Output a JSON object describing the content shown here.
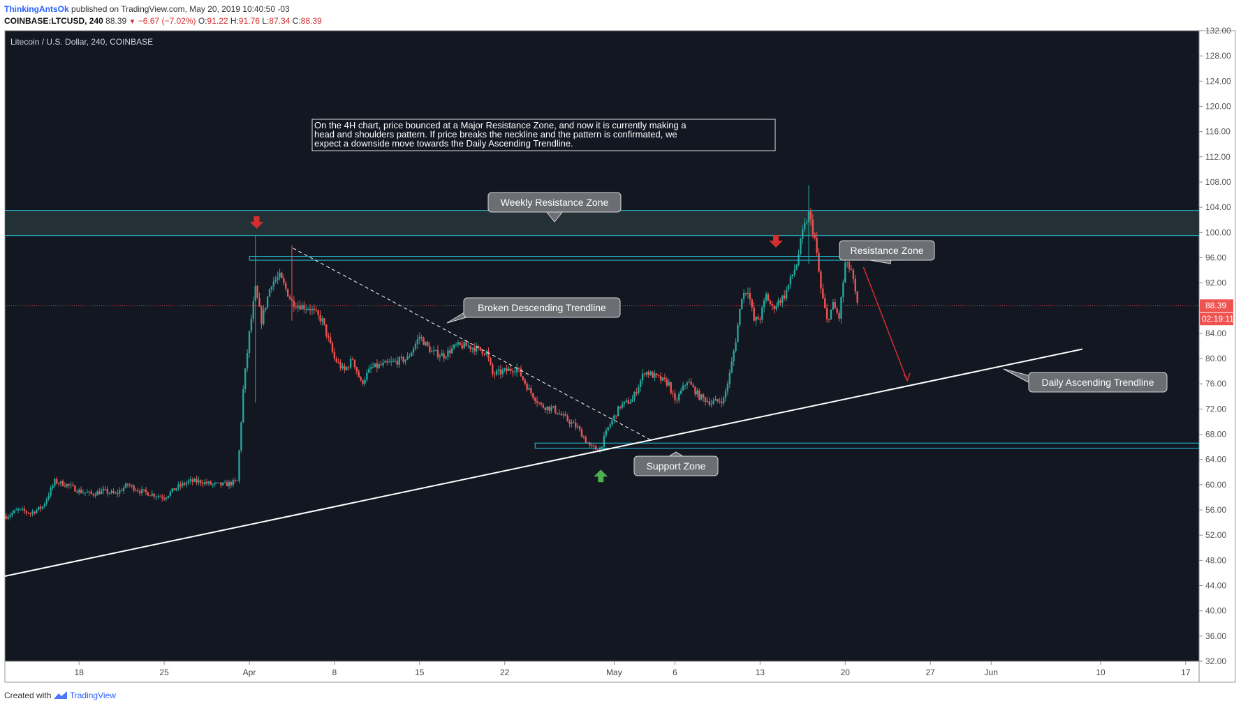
{
  "header": {
    "author": "ThinkingAntsOk",
    "published": "published on TradingView.com, May 20, 2019 10:40:50 -03",
    "symbol": "COINBASE:LTCUSD, 240",
    "last": "88.39",
    "change": "−6.67 (−7.02%)",
    "o_label": "O:",
    "o_value": "91.22",
    "h_label": "H:",
    "h_value": "91.76",
    "l_label": "L:",
    "l_value": "87.34",
    "c_label": "C:",
    "c_value": "88.39"
  },
  "footer": {
    "created_with": "Created with",
    "brand": "TradingView"
  },
  "colors": {
    "chart_bg": "#131722",
    "up": "#26a69a",
    "down": "#ef5350",
    "zone": "#26c6da",
    "annotation_bg": "#6b6e73",
    "arrow_red": "#d32f2f",
    "arrow_green": "#4caf50"
  },
  "chart_data": {
    "type": "candlestick",
    "title": "Litecoin / U.S. Dollar, 240, COINBASE",
    "current_price_label": "88.39",
    "countdown_label": "02:19:11",
    "y_axis": {
      "min": 32,
      "max": 132,
      "step": 4
    },
    "x_ticks": [
      {
        "label": "18",
        "day": 4
      },
      {
        "label": "25",
        "day": 11
      },
      {
        "label": "Apr",
        "day": 18
      },
      {
        "label": "8",
        "day": 25
      },
      {
        "label": "15",
        "day": 32
      },
      {
        "label": "22",
        "day": 39
      },
      {
        "label": "May",
        "day": 48
      },
      {
        "label": "6",
        "day": 53
      },
      {
        "label": "13",
        "day": 60
      },
      {
        "label": "20",
        "day": 67
      },
      {
        "label": "27",
        "day": 74
      },
      {
        "label": "Jun",
        "day": 79
      },
      {
        "label": "10",
        "day": 88
      },
      {
        "label": "17",
        "day": 95
      }
    ],
    "x_range": {
      "start_day": -2.1,
      "end_day": 96.1,
      "start_date": "2019-03-12"
    },
    "price_anchors": [
      [
        -2.0,
        55
      ],
      [
        -1.0,
        56
      ],
      [
        0.0,
        55.5
      ],
      [
        1.0,
        56.5
      ],
      [
        2.0,
        60.5
      ],
      [
        3.0,
        60
      ],
      [
        4.0,
        59
      ],
      [
        5.0,
        58.5
      ],
      [
        6.0,
        59
      ],
      [
        7.0,
        58.5
      ],
      [
        8.0,
        60
      ],
      [
        9.0,
        59
      ],
      [
        10.0,
        58.5
      ],
      [
        11.0,
        58
      ],
      [
        12.0,
        59.5
      ],
      [
        13.0,
        60.5
      ],
      [
        14.0,
        60.5
      ],
      [
        15.0,
        60
      ],
      [
        16.0,
        60
      ],
      [
        17.0,
        60.5
      ],
      [
        17.5,
        75
      ],
      [
        18.0,
        84
      ],
      [
        18.5,
        91
      ],
      [
        19.0,
        86
      ],
      [
        19.8,
        92
      ],
      [
        20.5,
        93
      ],
      [
        21.5,
        89
      ],
      [
        22.0,
        88.5
      ],
      [
        23.0,
        88
      ],
      [
        24.0,
        86
      ],
      [
        25.0,
        80
      ],
      [
        25.8,
        78
      ],
      [
        26.5,
        80
      ],
      [
        27.2,
        76
      ],
      [
        28.0,
        78.5
      ],
      [
        29.0,
        79
      ],
      [
        30.0,
        79.5
      ],
      [
        31.0,
        80
      ],
      [
        32.0,
        83.5
      ],
      [
        33.0,
        81
      ],
      [
        34.0,
        80.5
      ],
      [
        35.0,
        82
      ],
      [
        36.0,
        82
      ],
      [
        37.5,
        81
      ],
      [
        38.0,
        77.5
      ],
      [
        39.0,
        78
      ],
      [
        40.0,
        78.5
      ],
      [
        41.0,
        75
      ],
      [
        42.0,
        72.5
      ],
      [
        43.0,
        72
      ],
      [
        44.0,
        70.5
      ],
      [
        45.0,
        69
      ],
      [
        46.0,
        66
      ],
      [
        46.8,
        65.5
      ],
      [
        47.5,
        69
      ],
      [
        48.5,
        72.5
      ],
      [
        49.5,
        73.5
      ],
      [
        50.5,
        78
      ],
      [
        51.5,
        77
      ],
      [
        52.5,
        76
      ],
      [
        53.0,
        73
      ],
      [
        54.0,
        76.5
      ],
      [
        55.0,
        74
      ],
      [
        56.0,
        73
      ],
      [
        57.0,
        73.5
      ],
      [
        57.5,
        77.5
      ],
      [
        58.0,
        83
      ],
      [
        58.5,
        90
      ],
      [
        59.0,
        91
      ],
      [
        59.5,
        86
      ],
      [
        60.0,
        86.5
      ],
      [
        60.5,
        90
      ],
      [
        61.0,
        88
      ],
      [
        62.0,
        90
      ],
      [
        63.0,
        95
      ],
      [
        63.5,
        100
      ],
      [
        64.0,
        103
      ],
      [
        64.5,
        99
      ],
      [
        65.0,
        91
      ],
      [
        65.5,
        86
      ],
      [
        66.0,
        88.5
      ],
      [
        66.5,
        86.5
      ],
      [
        67.0,
        95
      ],
      [
        67.5,
        94
      ],
      [
        68.0,
        88.39
      ]
    ],
    "zones": [
      {
        "name": "weekly_resistance",
        "low": 99.5,
        "high": 103.5,
        "filled": true
      },
      {
        "name": "resistance",
        "low": 95.6,
        "high": 96.2,
        "day_from": 18,
        "day_to": 72.2
      },
      {
        "name": "support",
        "low": 65.8,
        "high": 66.6,
        "day_from": 41.5,
        "day_to": 96.1
      }
    ],
    "trendlines": [
      {
        "name": "daily_ascending",
        "from": [
          -2.1,
          45.5
        ],
        "to": [
          86.5,
          81.5
        ],
        "style": "solid"
      },
      {
        "name": "broken_descending",
        "from": [
          21.6,
          97.5
        ],
        "to": [
          51.1,
          67
        ],
        "style": "dashed"
      }
    ],
    "annotations": [
      {
        "text": "Weekly Resistance Zone"
      },
      {
        "text": "Resistance Zone"
      },
      {
        "text": "Broken Descending Trendline"
      },
      {
        "text": "Daily Ascending Trendline"
      },
      {
        "text": "Support Zone"
      }
    ],
    "note_lines": [
      "On the 4H chart, price bounced at a Major Resistance Zone, and now it is currently making a",
      "head and shoulders pattern. If price breaks the neckline and the pattern is confirmated, we",
      "expect a downside move towards the Daily Ascending Trendline."
    ]
  }
}
